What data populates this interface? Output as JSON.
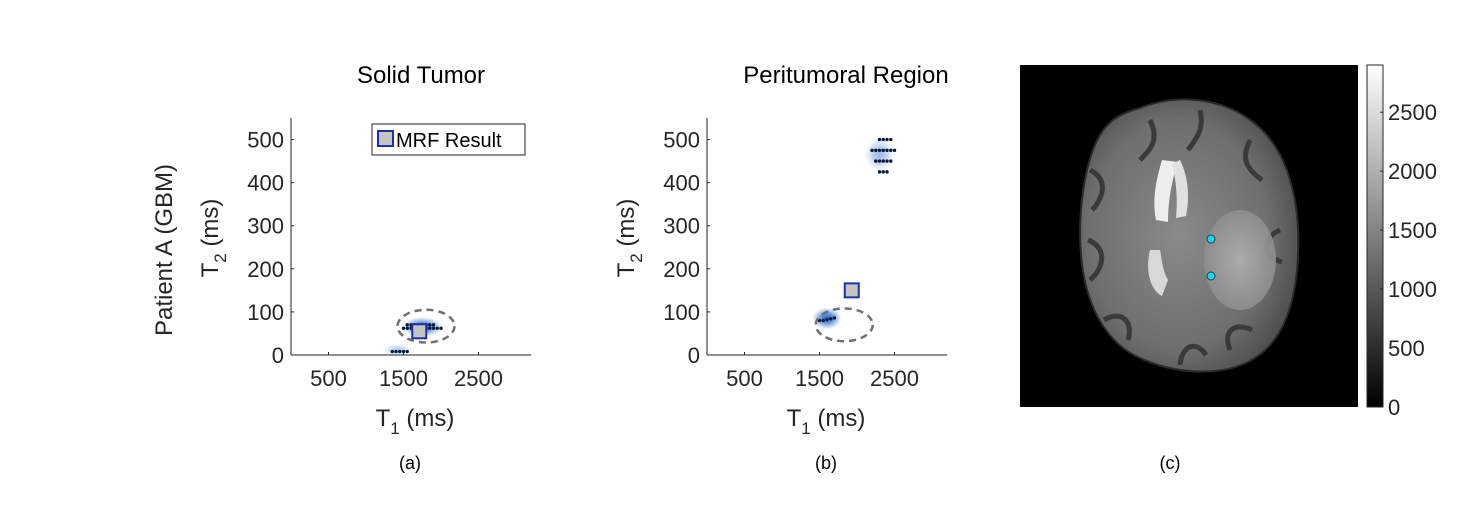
{
  "chart_data": [
    {
      "type": "scatter",
      "panel": "(a)",
      "title": "Solid Tumor",
      "row_label": "Patient A (GBM)",
      "xlabel_main": "T",
      "xlabel_sub": "1",
      "xlabel_unit": " (ms)",
      "ylabel_main": "T",
      "ylabel_sub": "2",
      "ylabel_unit": " (ms)",
      "xlim": [
        0,
        3200
      ],
      "ylim": [
        0,
        550
      ],
      "xticks": [
        500,
        1500,
        2500
      ],
      "yticks": [
        0,
        100,
        200,
        300,
        400,
        500
      ],
      "legend": {
        "label": "MRF Result",
        "position": "top-right"
      },
      "density_blobs": [
        {
          "t1": 1750,
          "t2": 65,
          "t1_spread": 280,
          "t2_spread": 24,
          "weight": 1.0
        },
        {
          "t1": 1420,
          "t2": 12,
          "t1_spread": 200,
          "t2_spread": 14,
          "weight": 0.35
        }
      ],
      "grid_points": {
        "t1": [
          1500,
          1550,
          1600,
          1650,
          1700,
          1750,
          1800,
          1850,
          1900,
          1950,
          2000,
          1550,
          1600,
          1650,
          1700,
          1750,
          1800,
          1850,
          1900,
          1350,
          1400,
          1450,
          1500,
          1550
        ],
        "t2": [
          62,
          62,
          62,
          62,
          62,
          62,
          62,
          62,
          62,
          62,
          62,
          70,
          70,
          70,
          70,
          70,
          70,
          70,
          70,
          8,
          8,
          8,
          8,
          8
        ]
      },
      "ellipse": {
        "t1_center": 1800,
        "t2_center": 67,
        "t1_radius": 380,
        "t2_radius": 38
      },
      "mrf_result": {
        "t1": 1710,
        "t2": 55
      }
    },
    {
      "type": "scatter",
      "panel": "(b)",
      "title": "Peritumoral Region",
      "xlabel_main": "T",
      "xlabel_sub": "1",
      "xlabel_unit": " (ms)",
      "ylabel_main": "T",
      "ylabel_sub": "2",
      "ylabel_unit": " (ms)",
      "xlim": [
        0,
        3200
      ],
      "ylim": [
        0,
        550
      ],
      "xticks": [
        500,
        1500,
        2500
      ],
      "yticks": [
        0,
        100,
        200,
        300,
        400,
        500
      ],
      "density_blobs": [
        {
          "t1": 1600,
          "t2": 85,
          "t1_spread": 200,
          "t2_spread": 26,
          "weight": 1.0
        },
        {
          "t1": 2300,
          "t2": 465,
          "t1_spread": 200,
          "t2_spread": 40,
          "weight": 0.45
        }
      ],
      "grid_points": {
        "t1": [
          1500,
          1550,
          1600,
          1650,
          1700,
          2300,
          2350,
          2400,
          2450,
          2200,
          2250,
          2300,
          2350,
          2400,
          2450,
          2500,
          2250,
          2300,
          2350,
          2400,
          2450,
          2300,
          2350,
          2400
        ],
        "t2": [
          80,
          80,
          82,
          84,
          86,
          500,
          500,
          500,
          500,
          475,
          475,
          475,
          475,
          475,
          475,
          475,
          450,
          450,
          450,
          450,
          450,
          425,
          425,
          425
        ],
        "note_not_shown": ""
      },
      "ellipse": {
        "t1_center": 1830,
        "t2_center": 70,
        "t1_radius": 380,
        "t2_radius": 38
      },
      "mrf_result": {
        "t1": 1930,
        "t2": 150
      }
    },
    {
      "type": "heatmap",
      "panel": "(c)",
      "colorbar_ticks": [
        0,
        500,
        1000,
        1500,
        2000,
        2500
      ],
      "colorbar_range": [
        0,
        2900
      ],
      "colormap": "gray",
      "marker_color": "#22d3ee"
    }
  ],
  "colors": {
    "density": "#2f6fc7",
    "density_dark": "#123a86",
    "point": "#0a1a3a",
    "ellipse": "#707070",
    "marker_fill": "#c4c4c4",
    "marker_edge": "#1e2fa8",
    "axis": "#262626"
  }
}
